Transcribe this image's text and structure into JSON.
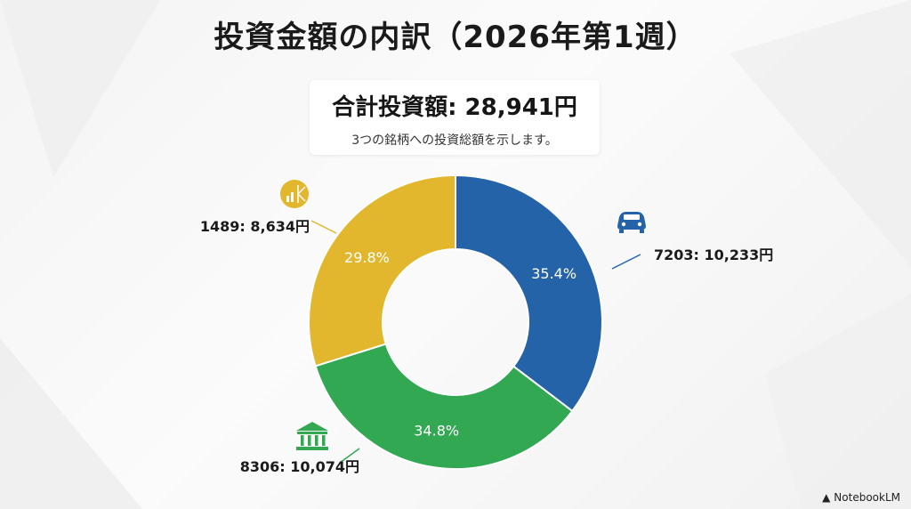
{
  "title": "投資金額の内訳（2026年第1週）",
  "summary": {
    "total": "合計投資額: 28,941円",
    "subtitle": "3つの銘柄への投資総額を示します。"
  },
  "watermark": "NotebookLM",
  "chart_data": {
    "type": "pie",
    "donut": true,
    "slices": [
      {
        "label": "7203: 10,233円",
        "value": 10233,
        "percent": "35.4%",
        "color": "#2563a8",
        "icon": "car-icon"
      },
      {
        "label": "8306: 10,074円",
        "value": 10074,
        "percent": "34.8%",
        "color": "#33a853",
        "icon": "bank-icon"
      },
      {
        "label": "1489: 8,634円",
        "value": 8634,
        "percent": "29.8%",
        "color": "#e2b72e",
        "icon": "chart-coin-icon"
      }
    ]
  }
}
